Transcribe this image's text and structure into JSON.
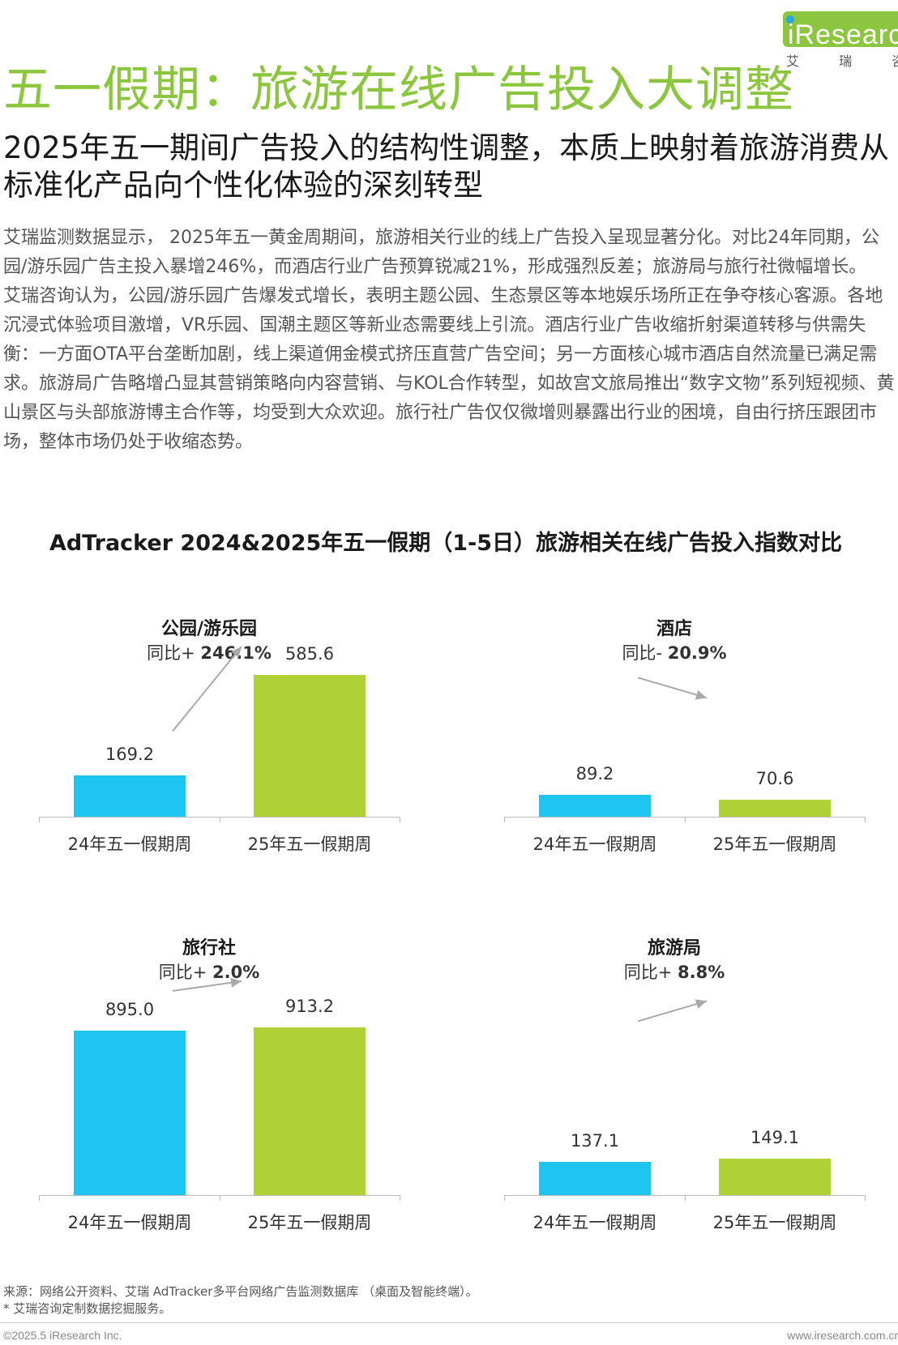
{
  "logo": {
    "text": "iResearch",
    "sub": "艾 瑞 咨"
  },
  "title": "五一假期：旅游在线广告投入大调整",
  "subtitle": "2025年五一期间广告投入的结构性调整，本质上映射着旅游消费从标准化产品向个性化体验的深刻转型",
  "paragraph": "艾瑞监测数据显示， 2025年五一黄金周期间，旅游相关行业的线上广告投入呈现显著分化。对比24年同期，公园/游乐园广告主投入暴增246%，而酒店行业广告预算锐减21%，形成强烈反差；旅游局与旅行社微幅增长。\n艾瑞咨询认为，公园/游乐园广告爆发式增长，表明主题公园、生态景区等本地娱乐场所正在争夺核心客源。各地沉浸式体验项目激增，VR乐园、国潮主题区等新业态需要线上引流。酒店行业广告收缩折射渠道转移与供需失衡：一方面OTA平台垄断加剧，线上渠道佣金模式挤压直营广告空间；另一方面核心城市酒店自然流量已满足需求。旅游局广告略增凸显其营销策略向内容营销、与KOL合作转型，如故宫文旅局推出“数字文物”系列短视频、黄山景区与头部旅游博主合作等，均受到大众欢迎。旅行社广告仅仅微增则暴露出行业的困境，自由行挤压跟团市场，整体市场仍处于收缩态势。",
  "chart_title": "AdTracker 2024&2025年五一假期（1-5日）旅游相关在线广告投入指数对比",
  "colors": {
    "green": "#8cc63f",
    "bar2024": "#1ec5f0",
    "bar2025": "#b0d136",
    "arrow": "#a9a9a9"
  },
  "chart_data": [
    {
      "type": "bar",
      "title": "公园/游乐园",
      "growth_prefix": "同比+",
      "growth": "246.1%",
      "trend": "up",
      "categories": [
        "24年五一假期周",
        "25年五一假期周"
      ],
      "values": [
        169.2,
        585.6
      ],
      "labels": [
        "169.2",
        "585.6"
      ],
      "ylim": [
        0,
        700
      ]
    },
    {
      "type": "bar",
      "title": "酒店",
      "growth_prefix": "同比-",
      "growth": "20.9%",
      "trend": "down",
      "categories": [
        "24年五一假期周",
        "25年五一假期周"
      ],
      "values": [
        89.2,
        70.6
      ],
      "labels": [
        "89.2",
        "70.6"
      ],
      "ylim": [
        0,
        700
      ]
    },
    {
      "type": "bar",
      "title": "旅行社",
      "growth_prefix": "同比+",
      "growth": "2.0%",
      "trend": "up",
      "categories": [
        "24年五一假期周",
        "25年五一假期周"
      ],
      "values": [
        895.0,
        913.2
      ],
      "labels": [
        "895.0",
        "913.2"
      ],
      "ylim": [
        0,
        1050
      ]
    },
    {
      "type": "bar",
      "title": "旅游局",
      "growth_prefix": "同比+",
      "growth": "8.8%",
      "trend": "up",
      "categories": [
        "24年五一假期周",
        "25年五一假期周"
      ],
      "values": [
        137.1,
        149.1
      ],
      "labels": [
        "137.1",
        "149.1"
      ],
      "ylim": [
        0,
        700
      ]
    }
  ],
  "source": {
    "line1": "来源：网络公开资料、艾瑞 AdTracker多平台网络广告监测数据库 （桌面及智能终端）。",
    "line2": "* 艾瑞咨询定制数据挖掘服务。"
  },
  "footer": {
    "copyright": "©2025.5 iResearch Inc.",
    "website": "www.iresearch.com.cr"
  }
}
